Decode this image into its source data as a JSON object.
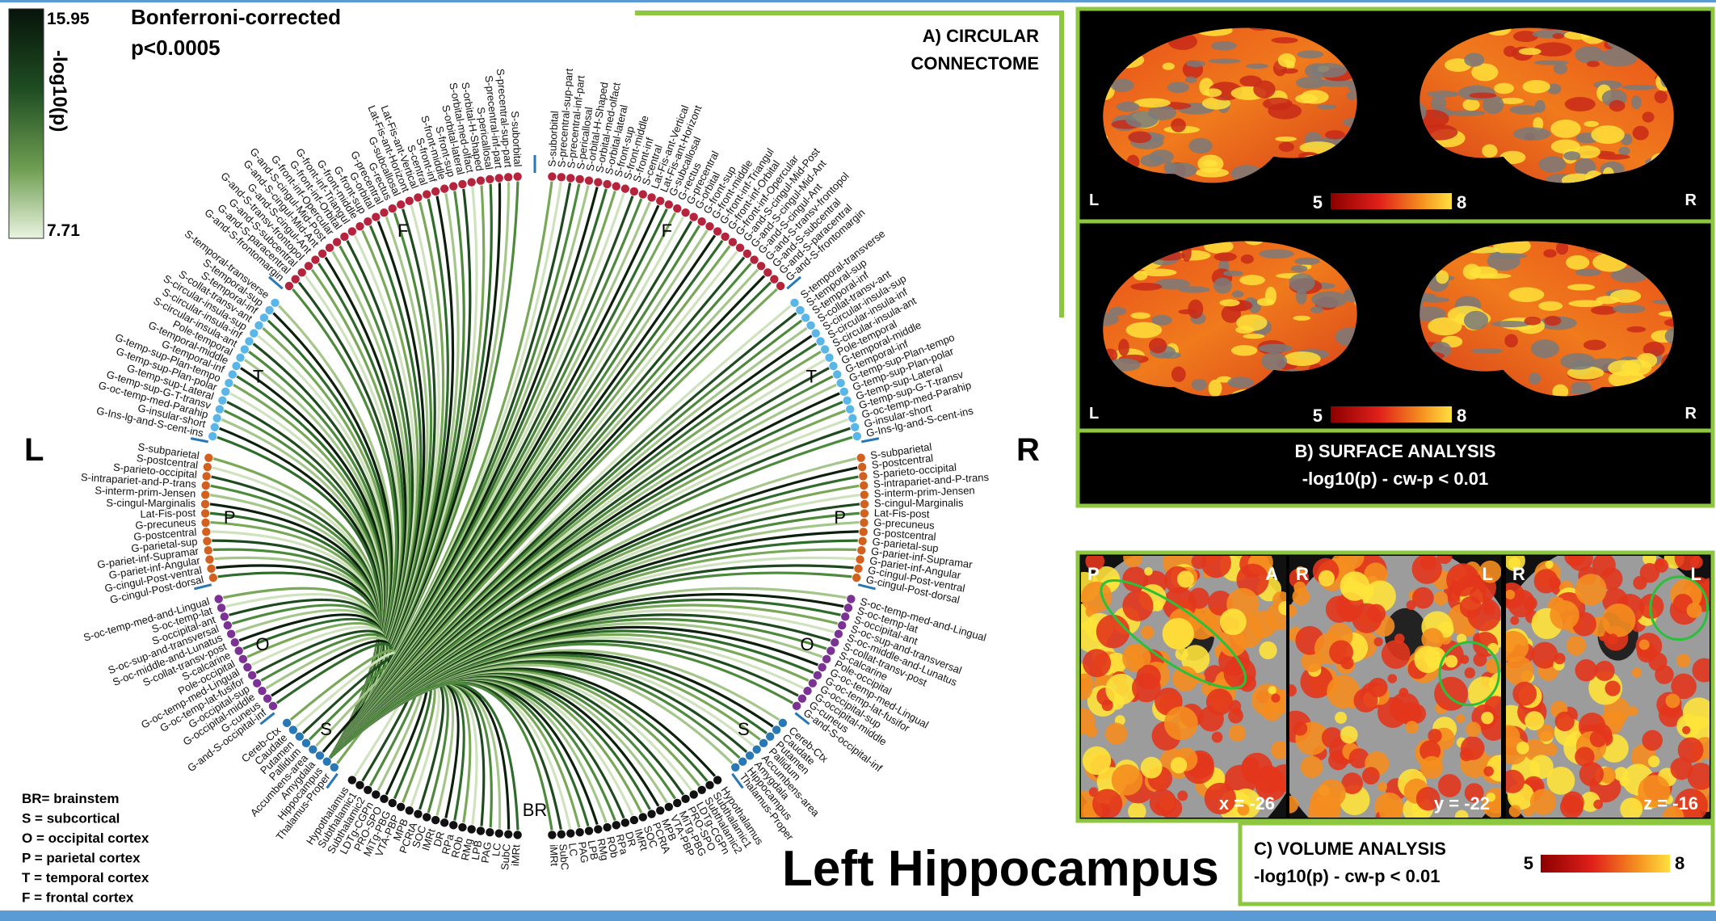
{
  "colorbar": {
    "max": 15.95,
    "min": 7.71,
    "label": "-log10(p)"
  },
  "title": "Bonferroni-corrected",
  "subtitle": "p<0.0005",
  "sides": {
    "left": "L",
    "right": "R"
  },
  "lobe_letters": {
    "frontal": "F",
    "temporal": "T",
    "parietal": "P",
    "occipital": "O",
    "subcortical": "S",
    "brainstem": "BR"
  },
  "lobe_colors": {
    "frontal": "#b5243c",
    "temporal": "#5bb6e8",
    "parietal": "#d2601f",
    "occipital": "#7b3294",
    "subcortical": "#2878b5",
    "brainstem": "#111111"
  },
  "regions": {
    "frontal": [
      "S-suborbital",
      "S-precentral-sup-part",
      "S-precentral-inf-part",
      "S-pericallosal",
      "S-orbital-H-Shaped",
      "S-orbital-med-olfact",
      "S-orbital-lateral",
      "S-front-sup",
      "S-front-middle",
      "S-front-inf",
      "S-central",
      "Lat-Fis-ant-Vertical",
      "Lat-Fis-ant-Horizont",
      "G-subcallosal",
      "G-rectus",
      "G-precentral",
      "G-orbital",
      "G-front-sup",
      "G-front-middle",
      "G-front-inf-Triangul",
      "G-front-inf-Orbital",
      "G-front-inf-Opercular",
      "G-and-S-cingul-Mid-Post",
      "G-and-S-cingul-Mid-Ant",
      "G-and-S-cingul-Ant",
      "G-and-S-transv-frontopol",
      "G-and-S-subcentral",
      "G-and-S-paracentral",
      "G-and-S-frontomargin"
    ],
    "temporal": [
      "S-temporal-transverse",
      "S-temporal-sup",
      "S-temporal-inf",
      "S-collat-transv-ant",
      "S-circular-insula-sup",
      "S-circular-insula-inf",
      "S-circular-insula-ant",
      "Pole-temporal",
      "G-temporal-middle",
      "G-temporal-inf",
      "G-temp-sup-Plan-tempo",
      "G-temp-sup-Plan-polar",
      "G-temp-sup-Lateral",
      "G-temp-sup-G-T-transv",
      "G-oc-temp-med-Parahip",
      "G-insular-short",
      "G-Ins-lg-and-S-cent-ins"
    ],
    "parietal": [
      "S-subparietal",
      "S-postcentral",
      "S-parieto-occipital",
      "S-intrapariet-and-P-trans",
      "S-interm-prim-Jensen",
      "S-cingul-Marginalis",
      "Lat-Fis-post",
      "G-precuneus",
      "G-postcentral",
      "G-parietal-sup",
      "G-pariet-inf-Supramar",
      "G-pariet-inf-Angular",
      "G-cingul-Post-ventral",
      "G-cingul-Post-dorsal"
    ],
    "occipital": [
      "S-oc-temp-med-and-Lingual",
      "S-oc-temp-lat",
      "S-occipital-ant",
      "S-oc-sup-and-transversal",
      "S-oc-middle-and-Lunatus",
      "S-collat-transv-post",
      "S-calcarine",
      "Pole-occipital",
      "G-oc-temp-med-Lingual",
      "G-oc-temp-lat-fusifor",
      "G-occipital-sup",
      "G-occipital-middle",
      "G-cuneus",
      "G-and-S-occipital-inf"
    ],
    "subcortical": [
      "Cereb-Ctx",
      "Caudate",
      "Putamen",
      "Pallidum",
      "Accumbens-area",
      "Amygdala",
      "Hippocampus",
      "Thalamus-Proper"
    ],
    "brainstem": [
      "Hypothalamus",
      "Subthalamic1",
      "Subthalamic2",
      "LDTg-CGPn",
      "PRO-SPO",
      "MiTg-PBG",
      "VTA-PBP",
      "MPB",
      "PCRtA",
      "SOC",
      "IMRt",
      "DR",
      "RPa",
      "ROb",
      "RMg",
      "LPB",
      "PAG",
      "LC",
      "SubC",
      "iMRt"
    ]
  },
  "legend": [
    "BR= brainstem",
    "S = subcortical",
    "O = occipital cortex",
    "P = parietal cortex",
    "T = temporal cortex",
    "F = frontal cortex"
  ],
  "panel_a": {
    "title": [
      "A) CIRCULAR",
      "CONNECTOME"
    ]
  },
  "panel_b": {
    "title": "B) SURFACE ANALYSIS",
    "subtitle": "-log10(p) - cw-p < 0.01",
    "scale_min": 5,
    "scale_max": 8,
    "left": "L",
    "right": "R"
  },
  "panel_c": {
    "title": "C) VOLUME ANALYSIS",
    "subtitle": "-log10(p) - cw-p < 0.01",
    "scale_min": 5,
    "scale_max": 8,
    "slices": [
      {
        "left": "P",
        "right": "A",
        "coord": "x = -26"
      },
      {
        "left": "R",
        "right": "L",
        "coord": "y = -22"
      },
      {
        "left": "R",
        "right": "L",
        "coord": "z = -16"
      }
    ]
  },
  "label": "Left Hippocampus"
}
